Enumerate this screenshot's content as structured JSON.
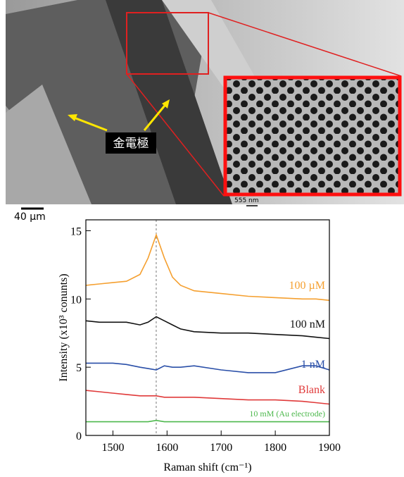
{
  "image": {
    "label": "金電極",
    "scale_bar": "40 µm",
    "inset_scale_bar": "555 nm"
  },
  "chart_data": {
    "type": "line",
    "ylabel": "Intensity (x10³ conunts)",
    "xlabel": "Raman shift (cm⁻¹)",
    "x": [
      1450,
      1475,
      1500,
      1525,
      1550,
      1565,
      1580,
      1595,
      1610,
      1625,
      1650,
      1700,
      1750,
      1800,
      1850,
      1875,
      1900
    ],
    "series": [
      {
        "name": "100 µM",
        "color": "#f5a030",
        "values": [
          11.0,
          11.1,
          11.2,
          11.3,
          11.8,
          13.0,
          14.7,
          13.0,
          11.6,
          11.0,
          10.6,
          10.4,
          10.2,
          10.1,
          10.0,
          10.0,
          9.9
        ]
      },
      {
        "name": "100 nM",
        "color": "#111111",
        "values": [
          8.4,
          8.3,
          8.3,
          8.3,
          8.1,
          8.3,
          8.7,
          8.4,
          8.1,
          7.8,
          7.6,
          7.5,
          7.5,
          7.4,
          7.3,
          7.2,
          7.1
        ]
      },
      {
        "name": "1 nM",
        "color": "#2a4fa8",
        "values": [
          5.3,
          5.3,
          5.3,
          5.2,
          5.0,
          4.9,
          4.8,
          5.1,
          5.0,
          5.0,
          5.1,
          4.8,
          4.6,
          4.6,
          5.1,
          5.1,
          4.8
        ]
      },
      {
        "name": "Blank",
        "color": "#e03a3a",
        "values": [
          3.3,
          3.2,
          3.1,
          3.0,
          2.9,
          2.9,
          2.9,
          2.8,
          2.8,
          2.8,
          2.8,
          2.7,
          2.6,
          2.6,
          2.5,
          2.4,
          2.3
        ]
      },
      {
        "name": "10 mM (Au electrode)",
        "color": "#4db84d",
        "values": [
          1.0,
          1.0,
          1.0,
          1.0,
          1.0,
          1.0,
          1.1,
          1.0,
          1.0,
          1.0,
          1.0,
          1.0,
          1.0,
          1.0,
          1.0,
          1.0,
          1.0
        ]
      }
    ],
    "vline": 1580,
    "xlim": [
      1450,
      1900
    ],
    "xticks": [
      1500,
      1600,
      1700,
      1800,
      1900
    ],
    "ylim": [
      0,
      15.8
    ],
    "yticks": [
      0,
      5,
      10,
      15
    ]
  }
}
